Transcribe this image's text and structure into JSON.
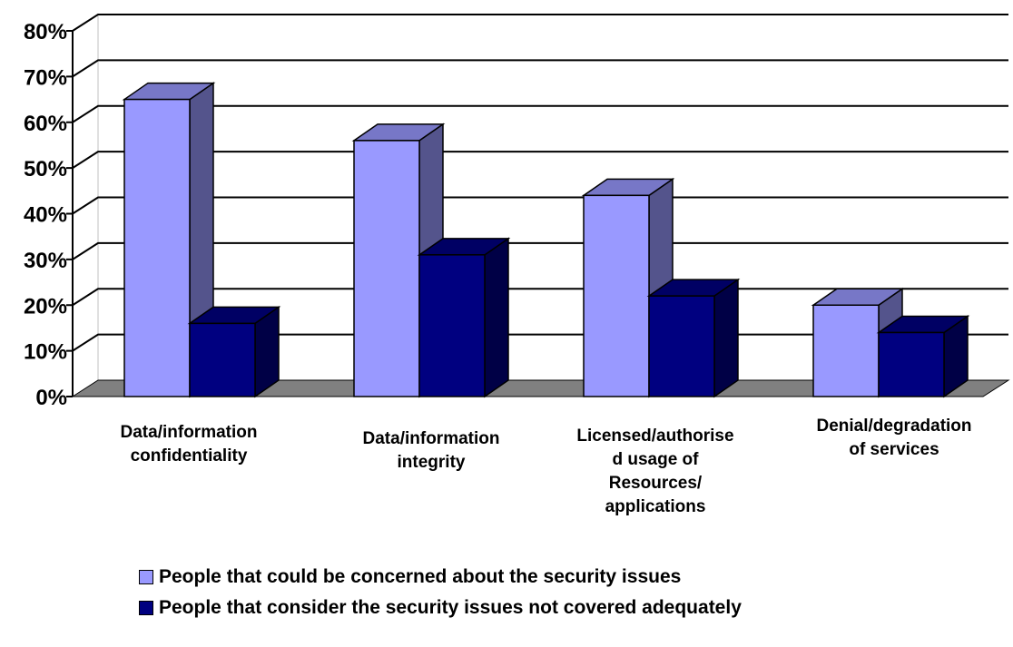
{
  "chart_data": {
    "type": "bar",
    "categories": [
      "Data/information\nconfidentiality",
      "Data/information\nintegrity",
      "Licensed/authorise\nd usage of\nResources/\napplications",
      "Denial/degradation\nof services"
    ],
    "series": [
      {
        "name": "People that could be concerned about the security issues",
        "values": [
          65,
          56,
          44,
          20
        ],
        "color": "#9999ff"
      },
      {
        "name": "People that consider the security issues not covered adequately",
        "values": [
          16,
          31,
          22,
          14
        ],
        "color": "#000080"
      }
    ],
    "ylim": [
      0,
      80
    ],
    "yticks": [
      "0%",
      "10%",
      "20%",
      "30%",
      "40%",
      "50%",
      "60%",
      "70%",
      "80%"
    ],
    "grid": true,
    "legend_position": "bottom",
    "style": "3d-column"
  }
}
